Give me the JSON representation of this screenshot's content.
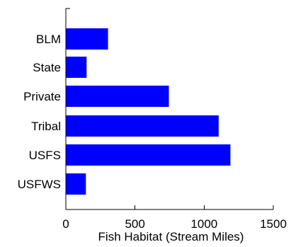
{
  "chart_data": {
    "type": "bar",
    "orientation": "horizontal",
    "categories": [
      "BLM",
      "State",
      "Private",
      "Tribal",
      "USFS",
      "USFWS"
    ],
    "values": [
      305,
      150,
      745,
      1105,
      1190,
      145
    ],
    "xlabel": "Fish Habitat (Stream Miles)",
    "ylabel": "",
    "xlim": [
      0,
      1500
    ],
    "xticks": [
      0,
      500,
      1000,
      1500
    ],
    "grid": false,
    "bar_color": "#0000ff"
  }
}
